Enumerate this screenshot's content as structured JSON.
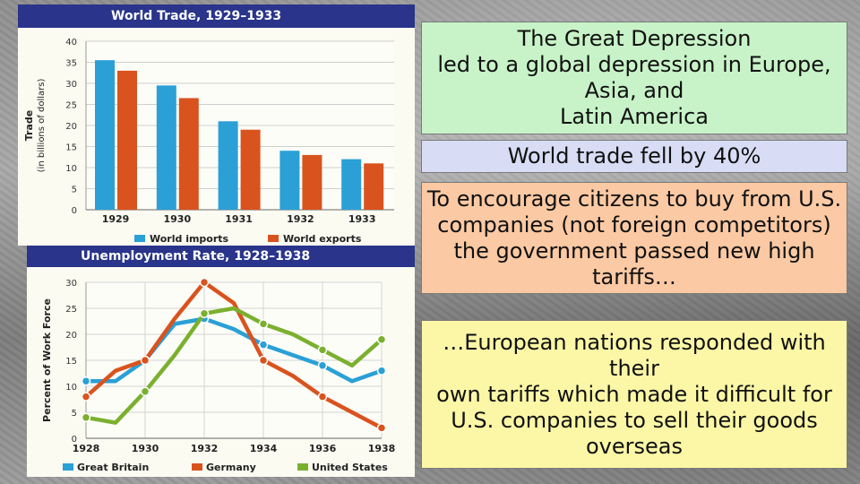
{
  "slide": {
    "box1_text": "The Great Depression\nled to a global depression in Europe, Asia, and\nLatin America",
    "box2_text": "World trade fell by 40%",
    "box3_text": "To encourage citizens to buy from U.S. companies (not foreign competitors) the government passed new high tariffs…",
    "box4_text": "…European nations responded with their\nown tariffs which made it difficult for U.S. companies to sell their goods overseas"
  },
  "chart_data": [
    {
      "type": "bar",
      "title": "World Trade, 1929–1933",
      "ylabel": "Trade",
      "ylabel_sub": "(in billions of dollars)",
      "categories": [
        "1929",
        "1930",
        "1931",
        "1932",
        "1933"
      ],
      "series": [
        {
          "name": "World imports",
          "values": [
            35.5,
            29.5,
            21,
            14,
            12
          ],
          "color": "#2aa0d6"
        },
        {
          "name": "World exports",
          "values": [
            33,
            26.5,
            19,
            13,
            11
          ],
          "color": "#d9531e"
        }
      ],
      "ylim": [
        0,
        40
      ],
      "yticks": [
        0,
        5,
        10,
        15,
        20,
        25,
        30,
        35,
        40
      ],
      "grid": true,
      "legend": "bottom"
    },
    {
      "type": "line",
      "title": "Unemployment Rate, 1928–1938",
      "ylabel": "Percent of Work Force",
      "x": [
        1928,
        1929,
        1930,
        1931,
        1932,
        1933,
        1934,
        1935,
        1936,
        1937,
        1938
      ],
      "xticks": [
        "1928",
        "1930",
        "1932",
        "1934",
        "1936",
        "1938"
      ],
      "series": [
        {
          "name": "Great Britain",
          "values": [
            11,
            11,
            15,
            22,
            23,
            21,
            18,
            16,
            14,
            11,
            13
          ],
          "color": "#2aa0d6"
        },
        {
          "name": "Germany",
          "values": [
            8,
            13,
            15,
            23,
            30,
            26,
            15,
            12,
            8,
            5,
            2
          ],
          "color": "#d9531e"
        },
        {
          "name": "United States",
          "values": [
            4,
            3,
            9,
            16,
            24,
            25,
            22,
            20,
            17,
            14,
            19
          ],
          "color": "#7bb02f"
        }
      ],
      "ylim": [
        0,
        30
      ],
      "yticks": [
        0,
        5,
        10,
        15,
        20,
        25,
        30
      ],
      "grid": true,
      "legend": "bottom"
    }
  ]
}
